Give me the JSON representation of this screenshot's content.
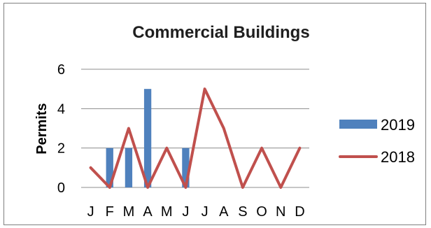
{
  "chart_data": {
    "type": "bar",
    "title": "Commercial Buildings",
    "xlabel": "",
    "ylabel": "Permits",
    "categories": [
      "J",
      "F",
      "M",
      "A",
      "M",
      "J",
      "J",
      "A",
      "S",
      "O",
      "N",
      "D"
    ],
    "ylim": [
      0,
      6
    ],
    "yticks": [
      "0",
      "2",
      "4",
      "6"
    ],
    "grid": true,
    "legend_position": "right",
    "series": [
      {
        "name": "2019",
        "type": "bar",
        "color": "#4f81bd",
        "values": [
          0,
          2,
          2,
          5,
          0,
          2,
          null,
          null,
          null,
          null,
          null,
          null
        ]
      },
      {
        "name": "2018",
        "type": "line",
        "color": "#c0504d",
        "values": [
          1,
          0,
          3,
          0,
          2,
          0,
          5,
          3,
          0,
          2,
          0,
          2
        ]
      }
    ]
  }
}
